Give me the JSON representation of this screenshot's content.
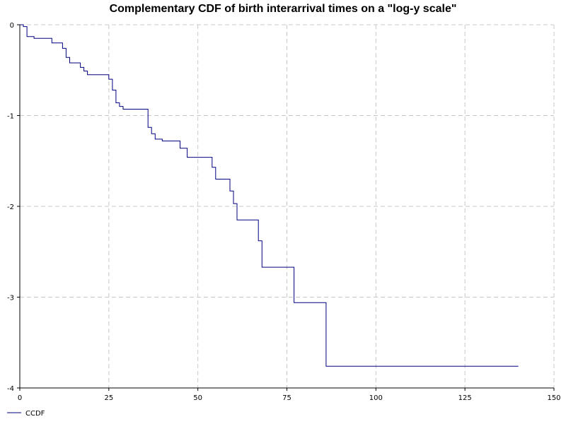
{
  "chart_data": {
    "type": "line",
    "title": "Complementary CDF of birth interarrival times on a \"log-y scale\"",
    "xlabel": "",
    "ylabel": "",
    "xlim": [
      0,
      150
    ],
    "ylim": [
      -4,
      0
    ],
    "x_ticks": [
      0,
      25,
      50,
      75,
      100,
      125,
      150
    ],
    "x_tick_labels": [
      "0",
      "25",
      "50",
      "75",
      "100",
      "125",
      "150"
    ],
    "y_ticks": [
      0,
      -1,
      -2,
      -3,
      -4
    ],
    "y_tick_labels": [
      "0",
      "-1",
      "-2",
      "-3",
      "-4"
    ],
    "grid": true,
    "legend_position": "bottom-left",
    "series": [
      {
        "name": "CCDF",
        "color": "#000080",
        "step": true,
        "x": [
          0,
          1,
          2,
          4,
          9,
          12,
          13,
          14,
          15,
          17,
          18,
          19,
          25,
          26,
          27,
          28,
          29,
          36,
          37,
          38,
          40,
          45,
          47,
          54,
          55,
          56,
          59,
          60,
          61,
          62,
          67,
          68,
          70,
          77,
          86,
          140
        ],
        "y": [
          0,
          -0.02,
          -0.13,
          -0.15,
          -0.2,
          -0.26,
          -0.36,
          -0.42,
          -0.42,
          -0.47,
          -0.51,
          -0.55,
          -0.6,
          -0.72,
          -0.86,
          -0.9,
          -0.93,
          -1.13,
          -1.2,
          -1.26,
          -1.28,
          -1.36,
          -1.46,
          -1.57,
          -1.7,
          -1.7,
          -1.83,
          -1.97,
          -2.15,
          -2.15,
          -2.38,
          -2.67,
          -2.67,
          -3.06,
          -3.76,
          -3.76
        ]
      }
    ]
  }
}
